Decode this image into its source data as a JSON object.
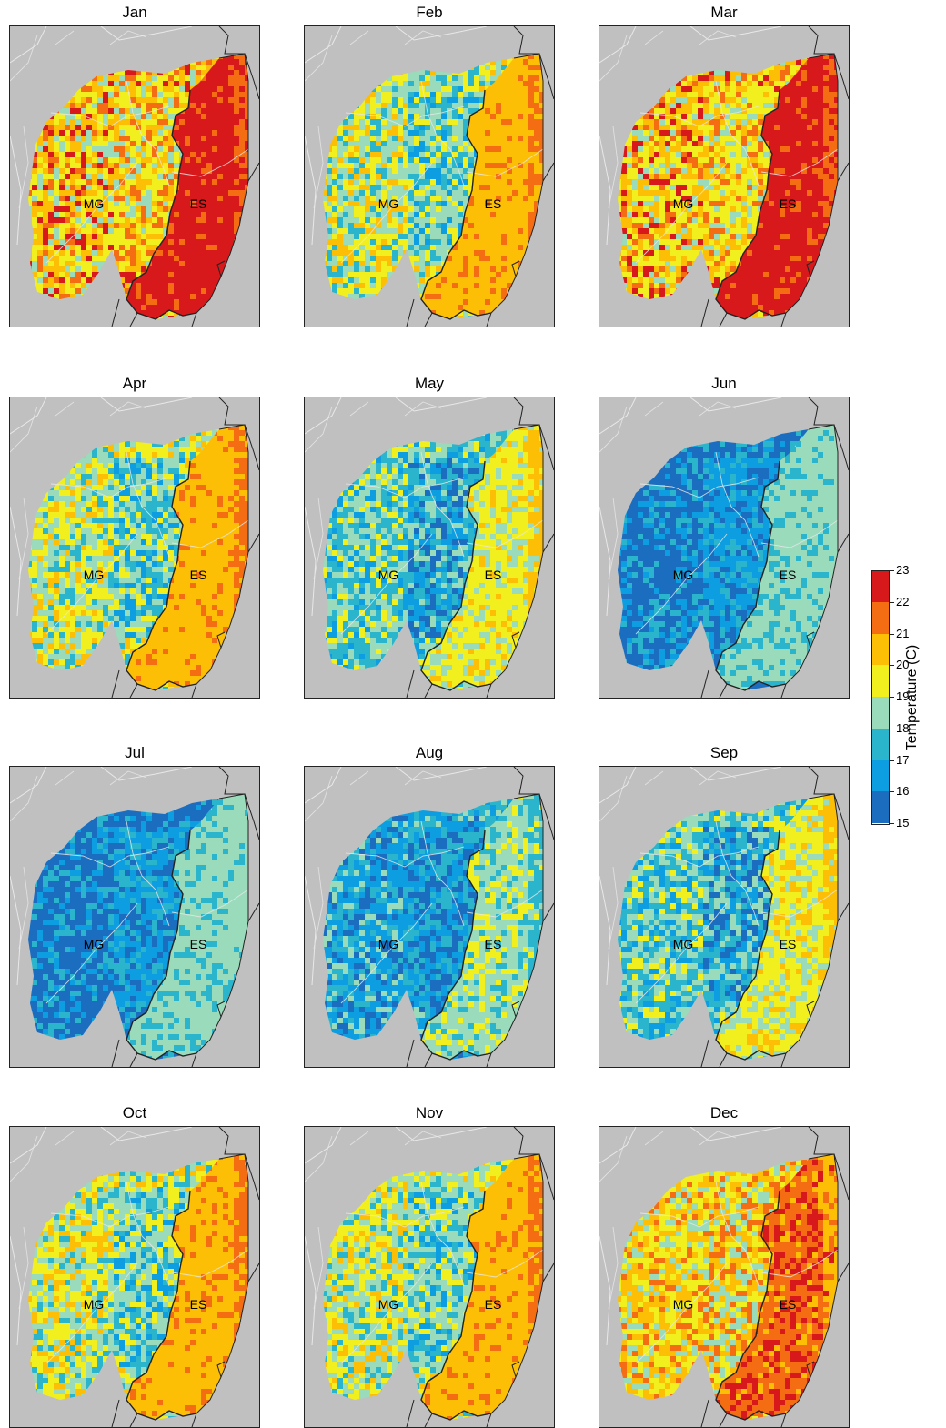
{
  "panels": [
    {
      "month": "Jan",
      "left_label": "MG",
      "right_label": "ES",
      "scheme": "warm-hot"
    },
    {
      "month": "Feb",
      "left_label": "MG",
      "right_label": "ES",
      "scheme": "mild"
    },
    {
      "month": "Mar",
      "left_label": "MG",
      "right_label": "ES",
      "scheme": "warm-hot"
    },
    {
      "month": "Apr",
      "left_label": "MG",
      "right_label": "ES",
      "scheme": "mild"
    },
    {
      "month": "May",
      "left_label": "MG",
      "right_label": "ES",
      "scheme": "cool"
    },
    {
      "month": "Jun",
      "left_label": "MG",
      "right_label": "ES",
      "scheme": "cold"
    },
    {
      "month": "Jul",
      "left_label": "MG",
      "right_label": "ES",
      "scheme": "cold"
    },
    {
      "month": "Aug",
      "left_label": "MG",
      "right_label": "ES",
      "scheme": "cold-mild"
    },
    {
      "month": "Sep",
      "left_label": "MG",
      "right_label": "ES",
      "scheme": "cool"
    },
    {
      "month": "Oct",
      "left_label": "MG",
      "right_label": "ES",
      "scheme": "mild"
    },
    {
      "month": "Nov",
      "left_label": "MG",
      "right_label": "ES",
      "scheme": "mild"
    },
    {
      "month": "Dec",
      "left_label": "MG",
      "right_label": "ES",
      "scheme": "warm"
    }
  ],
  "colorbar": {
    "title": "Temperature (C)",
    "ticks": [
      "23",
      "22",
      "21",
      "20",
      "19",
      "18",
      "17",
      "16",
      "15"
    ],
    "colors": [
      "#d7191c",
      "#f46d13",
      "#fdbf06",
      "#f2ef1e",
      "#99dbbb",
      "#2bb5cc",
      "#0c9ee0",
      "#1b6dbf"
    ]
  },
  "map_colors": {
    "background": "#c0c0c0",
    "state_border": "#222222",
    "river": "#e6e6e6"
  }
}
